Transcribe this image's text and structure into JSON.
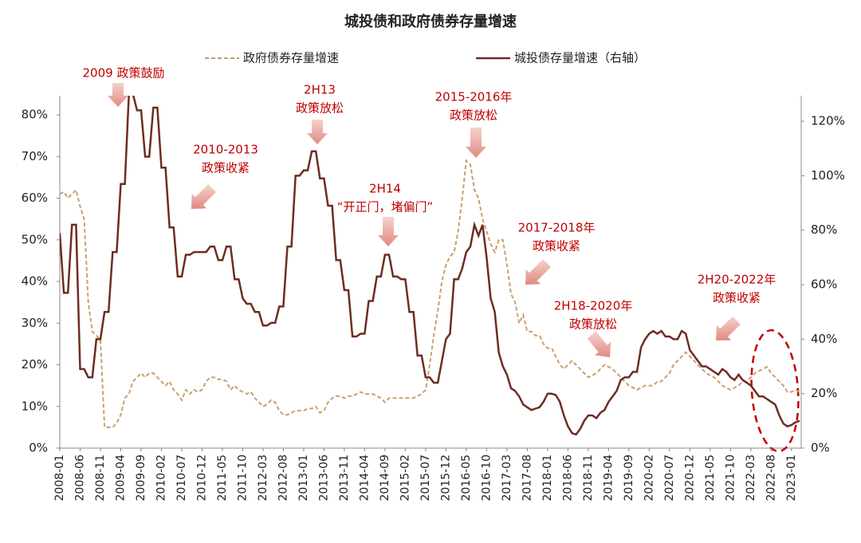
{
  "chart_data": {
    "type": "line",
    "title": "城投债和政府债券存量增速",
    "categories": [
      "2008-01",
      null,
      null,
      null,
      null,
      "2008-06",
      null,
      null,
      null,
      null,
      "2008-11",
      null,
      null,
      null,
      null,
      "2009-04",
      null,
      null,
      null,
      null,
      "2009-09",
      null,
      null,
      null,
      null,
      "2010-02",
      null,
      null,
      null,
      null,
      "2010-07",
      null,
      null,
      null,
      null,
      "2010-12",
      null,
      null,
      null,
      null,
      "2011-05",
      null,
      null,
      null,
      null,
      "2011-10",
      null,
      null,
      null,
      null,
      "2012-03",
      null,
      null,
      null,
      null,
      "2012-08",
      null,
      null,
      null,
      null,
      "2013-01",
      null,
      null,
      null,
      null,
      "2013-06",
      null,
      null,
      null,
      null,
      "2013-11",
      null,
      null,
      null,
      null,
      "2014-04",
      null,
      null,
      null,
      null,
      "2014-09",
      null,
      null,
      null,
      null,
      "2015-02",
      null,
      null,
      null,
      null,
      "2015-07",
      null,
      null,
      null,
      null,
      "2015-12",
      null,
      null,
      null,
      null,
      "2016-05",
      null,
      null,
      null,
      null,
      "2016-10",
      null,
      null,
      null,
      null,
      "2017-03",
      null,
      null,
      null,
      null,
      "2017-08",
      null,
      null,
      null,
      null,
      "2018-01",
      null,
      null,
      null,
      null,
      "2018-06",
      null,
      null,
      null,
      null,
      "2018-11",
      null,
      null,
      null,
      null,
      "2019-04",
      null,
      null,
      null,
      null,
      "2019-09",
      null,
      null,
      null,
      null,
      "2020-02",
      null,
      null,
      null,
      null,
      "2020-07",
      null,
      null,
      null,
      null,
      "2020-12",
      null,
      null,
      null,
      null,
      "2021-05",
      null,
      null,
      null,
      null,
      "2021-10",
      null,
      null,
      null,
      null,
      "2022-03",
      null,
      null,
      null,
      null,
      "2022-08",
      null,
      null,
      null,
      null,
      "2023-01",
      null,
      null
    ],
    "series": [
      {
        "name": "政府债券存量增速",
        "color": "#c9a06e",
        "dash": true,
        "axis": "y",
        "values": [
          61,
          61.5,
          60,
          61,
          62,
          58,
          55,
          35,
          28,
          27,
          26,
          5,
          5,
          5,
          6,
          8,
          12,
          13,
          16,
          17,
          18,
          17,
          18,
          18,
          17,
          16,
          15,
          16,
          14,
          13,
          11.5,
          14,
          13,
          14,
          13.5,
          14,
          16,
          17,
          17,
          16.5,
          16.5,
          16,
          14,
          15,
          14,
          13.5,
          13,
          13.5,
          12,
          11,
          10,
          10.5,
          11.5,
          11,
          9,
          8,
          8,
          8.5,
          9,
          9,
          9,
          9.5,
          9.5,
          10,
          8.5,
          9,
          11,
          12,
          12.5,
          12.5,
          12,
          12.5,
          12.5,
          13,
          13.5,
          13,
          13,
          13,
          12.5,
          12,
          11,
          12,
          12,
          12,
          12,
          12,
          12,
          12,
          12.5,
          13,
          14,
          20,
          27,
          33,
          40,
          44,
          46,
          47,
          52,
          60,
          69,
          68,
          62,
          60,
          55,
          52,
          49,
          47,
          50,
          50,
          44,
          37,
          35,
          30,
          32,
          28,
          28,
          27,
          27,
          25,
          24,
          24,
          22,
          20,
          19,
          20,
          21,
          20,
          19,
          18,
          17,
          17.5,
          18,
          19,
          20,
          19.5,
          19,
          18,
          17,
          16,
          15,
          14.5,
          14,
          14.5,
          15,
          15,
          15,
          16,
          16,
          17,
          18,
          20,
          21,
          22,
          23,
          22,
          21,
          20,
          19,
          18,
          17.5,
          17,
          16,
          15,
          14.5,
          14,
          14.5,
          15,
          16,
          16,
          17,
          18,
          18.5,
          19,
          19.5,
          18,
          17,
          16,
          15,
          13.5,
          13.5,
          14,
          13.5
        ]
      },
      {
        "name": "城投债存量增速（右轴）",
        "color": "#6e2c22",
        "dash": false,
        "axis": "y2",
        "values": [
          79,
          57,
          57,
          82,
          82,
          29,
          29,
          26,
          26,
          40,
          40,
          50,
          50,
          72,
          72,
          97,
          97,
          130,
          130,
          124,
          124,
          107,
          107,
          125,
          125,
          103,
          103,
          81,
          81,
          63,
          63,
          71,
          71,
          72,
          72,
          72,
          72,
          74,
          74,
          69,
          69,
          74,
          74,
          62,
          62,
          55,
          53,
          53,
          50,
          50,
          45,
          45,
          46,
          46,
          52,
          52,
          74,
          74,
          100,
          100,
          102,
          102,
          109,
          109,
          99,
          99,
          89,
          89,
          69,
          69,
          58,
          58,
          41,
          41,
          42,
          42,
          54,
          54,
          63,
          63,
          71,
          71,
          63,
          63,
          62,
          62,
          50,
          50,
          34,
          34,
          26,
          26,
          24,
          24,
          32,
          40,
          42,
          62,
          62,
          66,
          72,
          74,
          82,
          78,
          82,
          70,
          55,
          50,
          35,
          30,
          27,
          22,
          21,
          19,
          16,
          15,
          14,
          14.5,
          15,
          17,
          20,
          20,
          19.5,
          17,
          12,
          8,
          5.5,
          5,
          7,
          10,
          12,
          12,
          11,
          13,
          14,
          17,
          19,
          21,
          25,
          26,
          26,
          28,
          28,
          37,
          40,
          42,
          43,
          42,
          43,
          41,
          41,
          40,
          40,
          43,
          42,
          36,
          34,
          32,
          30,
          30,
          29,
          28,
          27,
          29,
          28,
          26,
          25,
          27,
          25,
          24,
          23,
          21,
          19,
          19,
          18,
          17,
          16,
          12,
          9,
          8,
          8.5,
          9.5,
          10
        ]
      }
    ],
    "ylim": [
      0,
      84.6
    ],
    "yticks": [
      {
        "value": 0,
        "label": "0%"
      },
      {
        "value": 10,
        "label": "10%"
      },
      {
        "value": 20,
        "label": "20%"
      },
      {
        "value": 30,
        "label": "30%"
      },
      {
        "value": 40,
        "label": "40%"
      },
      {
        "value": 50,
        "label": "50%"
      },
      {
        "value": 60,
        "label": "60%"
      },
      {
        "value": 70,
        "label": "70%"
      },
      {
        "value": 80,
        "label": "80%"
      }
    ],
    "y2lim": [
      0,
      129.4
    ],
    "y2ticks": [
      {
        "value": 0,
        "label": "0%"
      },
      {
        "value": 20,
        "label": "20%"
      },
      {
        "value": 40,
        "label": "40%"
      },
      {
        "value": 60,
        "label": "60%"
      },
      {
        "value": 80,
        "label": "80%"
      },
      {
        "value": 100,
        "label": "100%"
      },
      {
        "value": 120,
        "label": "120%"
      }
    ],
    "annotations": [
      {
        "lines": [
          "2009 政策鼓励"
        ]
      },
      {
        "lines": [
          "2010-2013",
          "政策收紧"
        ]
      },
      {
        "lines": [
          "2H13",
          "政策放松"
        ]
      },
      {
        "lines": [
          "2H14",
          "“开正门，堵偏门”"
        ]
      },
      {
        "lines": [
          "2015-2016年",
          "政策放松"
        ]
      },
      {
        "lines": [
          "2017-2018年",
          "政策收紧"
        ]
      },
      {
        "lines": [
          "2H18-2020年",
          "政策放松"
        ]
      },
      {
        "lines": [
          "2H20-2022年",
          "政策收紧"
        ]
      }
    ]
  }
}
